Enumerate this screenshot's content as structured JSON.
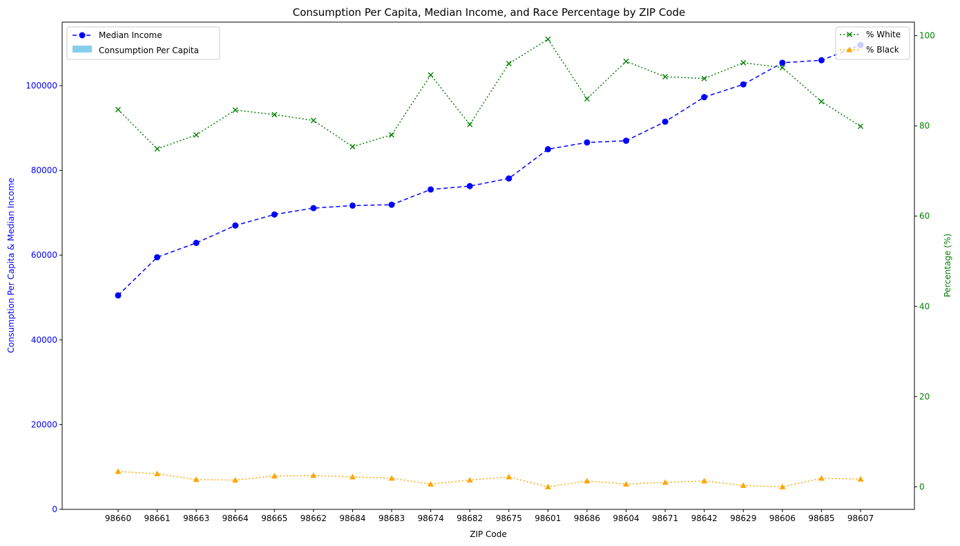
{
  "chart_data": {
    "type": "line",
    "title": "Consumption Per Capita, Median Income, and Race Percentage by ZIP Code",
    "xlabel": "ZIP Code",
    "ylabel_left": "Consumption Per Capita & Median Income",
    "ylabel_right": "Percentage (%)",
    "categories": [
      "98660",
      "98661",
      "98663",
      "98664",
      "98665",
      "98662",
      "98684",
      "98683",
      "98674",
      "98682",
      "98675",
      "98601",
      "98686",
      "98604",
      "98671",
      "98642",
      "98629",
      "98606",
      "98685",
      "98607"
    ],
    "ylim_left": [
      0,
      115000
    ],
    "yticks_left": [
      0,
      20000,
      40000,
      60000,
      80000,
      100000
    ],
    "ylim_right": [
      -5,
      103
    ],
    "yticks_right": [
      0,
      20,
      40,
      60,
      80,
      100
    ],
    "grid": false,
    "left_axis_color": "#0000ff",
    "right_axis_color": "#008000",
    "legend_left": {
      "placement": "top-left",
      "entries": [
        {
          "label": "Median Income",
          "color": "#0000ff",
          "kind": "line-dashed-circle"
        },
        {
          "label": "Consumption Per Capita",
          "color": "#87ceeb",
          "kind": "patch"
        }
      ]
    },
    "legend_right": {
      "placement": "top-right",
      "entries": [
        {
          "label": "% White",
          "color": "#008000",
          "kind": "line-dotted-x"
        },
        {
          "label": "% Black",
          "color": "#ffa500",
          "kind": "line-dotted-triangle"
        }
      ]
    },
    "series": [
      {
        "name": "Median Income",
        "axis": "left",
        "color": "#0000ff",
        "dash": "6,4",
        "marker": "circle",
        "values": [
          50500,
          59500,
          62900,
          67000,
          69600,
          71100,
          71700,
          71900,
          75500,
          76300,
          78100,
          85000,
          86600,
          87000,
          91500,
          97300,
          100300,
          105400,
          106000,
          109600
        ]
      },
      {
        "name": "% White",
        "axis": "right",
        "color": "#008000",
        "dash": "2,3",
        "marker": "x",
        "values": [
          83.6,
          74.9,
          78.0,
          83.5,
          82.5,
          81.2,
          75.4,
          78.0,
          91.3,
          80.3,
          93.8,
          99.2,
          86.0,
          94.3,
          90.9,
          90.5,
          94.0,
          92.9,
          85.4,
          79.9
        ]
      },
      {
        "name": "% Black",
        "axis": "right",
        "color": "#ffa500",
        "dash": "2,3",
        "marker": "triangle",
        "values": [
          3.4,
          2.9,
          1.6,
          1.5,
          2.4,
          2.5,
          2.2,
          1.9,
          0.6,
          1.5,
          2.2,
          0.0,
          1.3,
          0.6,
          1.0,
          1.3,
          0.3,
          0.0,
          1.9,
          1.7
        ]
      }
    ]
  }
}
